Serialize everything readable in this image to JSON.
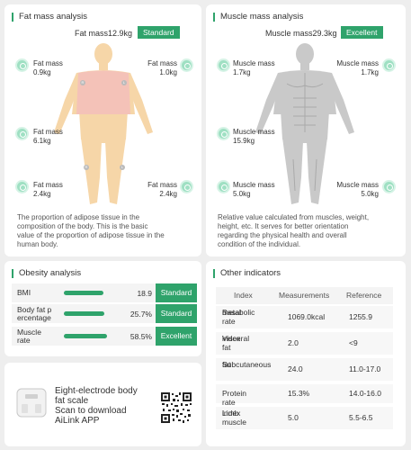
{
  "fat": {
    "title": "Fat mass analysis",
    "total": "Fat mass12.9kg",
    "status": "Standard",
    "segments": [
      {
        "label": "Fat mass",
        "value": "0.9kg"
      },
      {
        "label": "Fat mass",
        "value": "1.0kg"
      },
      {
        "label": "Fat mass",
        "value": "6.1kg"
      },
      {
        "label": "Fat mass",
        "value": "2.4kg"
      },
      {
        "label": "Fat mass",
        "value": "2.4kg"
      }
    ],
    "markers": [
      "R",
      "L",
      "R",
      "L"
    ],
    "description": [
      "The proportion of adipose tissue in the",
      "composition of the body. This is the basic",
      "value of the proportion of adipose tissue in the",
      "human body."
    ]
  },
  "muscle": {
    "title": "Muscle mass analysis",
    "total": "Muscle mass29.3kg",
    "status": "Excellent",
    "segments": [
      {
        "label": "Muscle mass",
        "value": "1.7kg"
      },
      {
        "label": "Muscle mass",
        "value": "1.7kg"
      },
      {
        "label": "Muscle mass",
        "value": "15.9kg"
      },
      {
        "label": "Muscle mass",
        "value": "5.0kg"
      },
      {
        "label": "Muscle mass",
        "value": "5.0kg"
      }
    ],
    "description": [
      "Relative value calculated from muscles, weight,",
      "height, etc. It serves for better orientation",
      "regarding the physical health and overall",
      "condition of the individual."
    ]
  },
  "obesity": {
    "title": "Obesity analysis",
    "rows": [
      {
        "label": [
          "BMI"
        ],
        "value": "18.9",
        "status": "Standard",
        "level": 0.9
      },
      {
        "label": [
          "Body fat p",
          "ercentage"
        ],
        "value": "25.7%",
        "status": "Standard",
        "level": 0.92
      },
      {
        "label": [
          "Muscle",
          "rate"
        ],
        "value": "58.5%",
        "status": "Excellent",
        "level": 0.97
      }
    ]
  },
  "other": {
    "title": "Other indicators",
    "headers": [
      "Index",
      "Measurements",
      "Reference"
    ],
    "rows": [
      {
        "index": [
          "Basal",
          "metabolic rate"
        ],
        "measurement": "1069.0kcal",
        "reference": "1255.9"
      },
      {
        "index": [
          "Visceral fat",
          "index"
        ],
        "measurement": "2.0",
        "reference": "<9"
      },
      {
        "index": [
          "Subcutaneous",
          "fat"
        ],
        "measurement": "24.0",
        "reference": "11.0-17.0"
      },
      {
        "index": [
          "Protein rate"
        ],
        "measurement": "15.3%",
        "reference": "14.0-16.0"
      },
      {
        "index": [
          "Limb muscle",
          "index"
        ],
        "measurement": "5.0",
        "reference": "5.5-6.5"
      }
    ]
  },
  "promo": {
    "lines": [
      "Eight-electrode body",
      "fat scale",
      "Scan to download",
      "AiLink APP"
    ],
    "scale_icon": "scale-icon",
    "qr_icon": "qr-code-icon"
  },
  "colors": {
    "accent": "#2fa36b",
    "fat_body": "#f6d6a8",
    "fat_torso": "#f4c2b8",
    "muscle_body": "#c8c8c8"
  }
}
